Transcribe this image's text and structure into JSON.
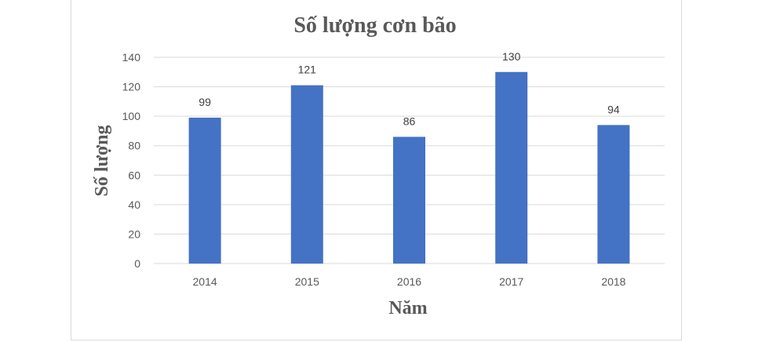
{
  "chart_data": {
    "type": "bar",
    "title": "Số lượng cơn bão",
    "xlabel": "Năm",
    "ylabel": "Số lượng",
    "categories": [
      "2014",
      "2015",
      "2016",
      "2017",
      "2018"
    ],
    "values": [
      99,
      121,
      86,
      130,
      94
    ],
    "ylim": [
      0,
      140
    ],
    "yticks": [
      "0",
      "20",
      "40",
      "60",
      "80",
      "100",
      "120",
      "140"
    ],
    "grid": true,
    "legend": "none",
    "bar_color": "#4472c4",
    "grid_color": "#d9d9d9"
  }
}
